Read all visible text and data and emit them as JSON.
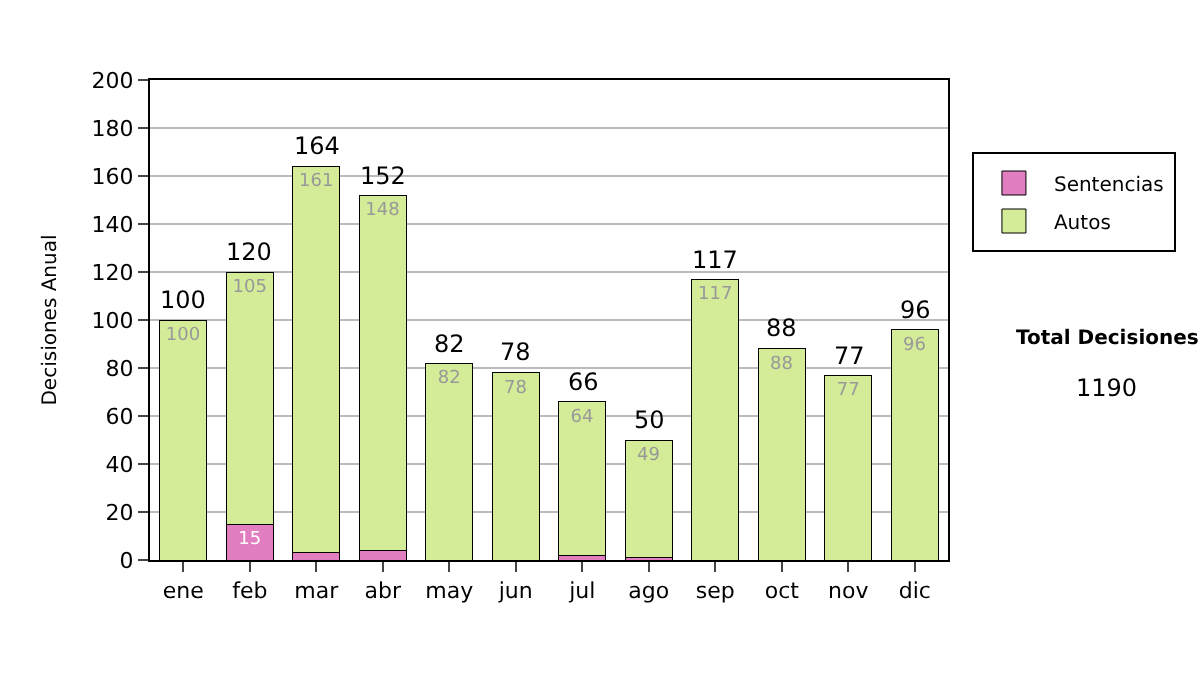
{
  "chart_data": {
    "type": "bar",
    "stacked": true,
    "ylabel": "Decisiones Anual",
    "categories": [
      "ene",
      "feb",
      "mar",
      "abr",
      "may",
      "jun",
      "jul",
      "ago",
      "sep",
      "oct",
      "nov",
      "dic"
    ],
    "series": [
      {
        "name": "Sentencias",
        "color": "#e07ec0",
        "values": [
          0,
          15,
          3,
          4,
          0,
          0,
          2,
          1,
          0,
          0,
          0,
          0
        ],
        "value_labels": [
          null,
          "15",
          null,
          null,
          null,
          null,
          null,
          null,
          null,
          null,
          null,
          null
        ]
      },
      {
        "name": "Autos",
        "color": "#d4ec98",
        "values": [
          100,
          105,
          161,
          148,
          82,
          78,
          64,
          49,
          117,
          88,
          77,
          96
        ],
        "value_labels": [
          "100",
          "105",
          "161",
          "148",
          "82",
          "78",
          "64",
          "49",
          "117",
          "88",
          "77",
          "96"
        ]
      }
    ],
    "totals": [
      "100",
      "120",
      "164",
      "152",
      "82",
      "78",
      "66",
      "50",
      "117",
      "88",
      "77",
      "96"
    ],
    "ylim": [
      0,
      200
    ],
    "yticks": [
      0,
      20,
      40,
      60,
      80,
      100,
      120,
      140,
      160,
      180,
      200
    ],
    "grid": "y",
    "legend": "top right",
    "annotations": [
      "Total Decisiones",
      "1190"
    ]
  }
}
